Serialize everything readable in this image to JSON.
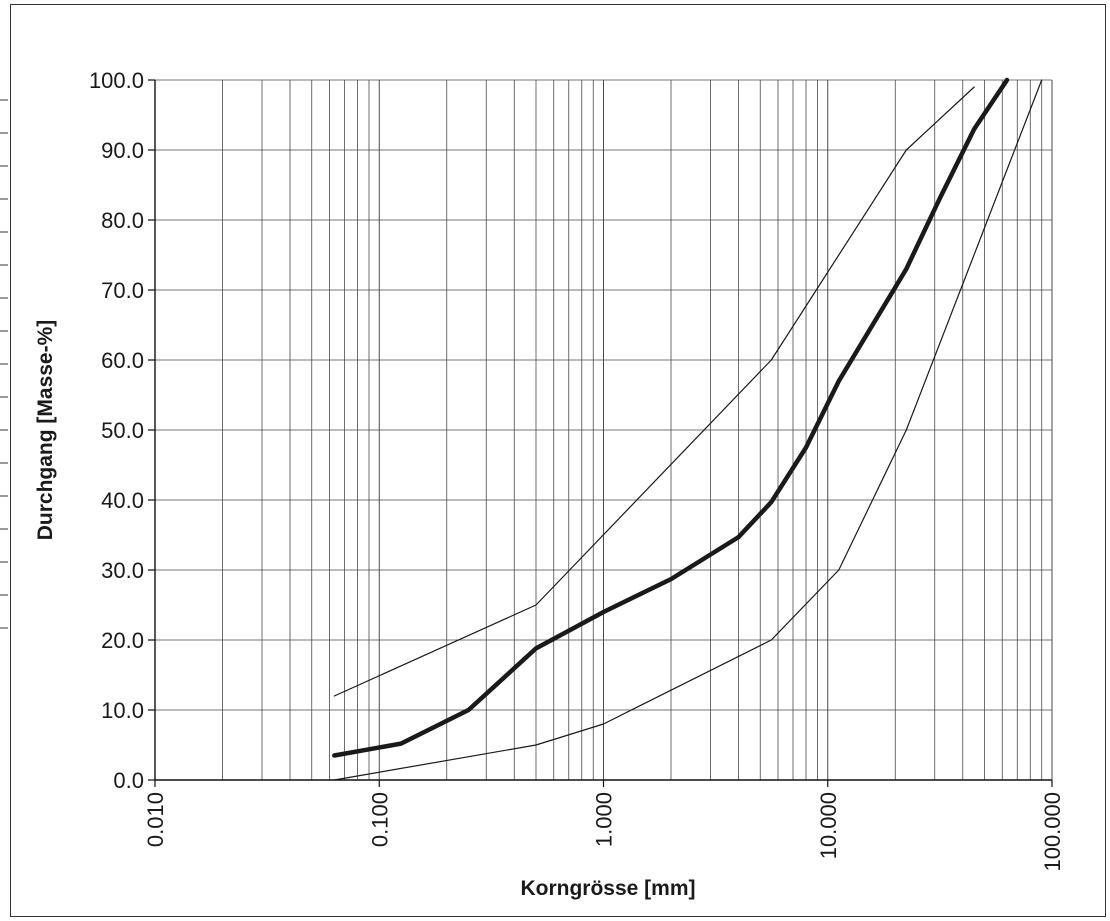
{
  "chart_data": {
    "type": "line",
    "xlabel": "Korngrösse [mm]",
    "ylabel": "Durchgang [Masse-%]",
    "x_scale": "log",
    "xlim": [
      0.01,
      100
    ],
    "ylim": [
      0,
      100
    ],
    "grid": true,
    "x_ticks": [
      "0.010",
      "0.100",
      "1.000",
      "10.000",
      "100.000"
    ],
    "y_ticks": [
      "0.0",
      "10.0",
      "20.0",
      "30.0",
      "40.0",
      "50.0",
      "60.0",
      "70.0",
      "80.0",
      "90.0",
      "100.0"
    ],
    "series": [
      {
        "role": "upper-limit",
        "color": "#1a1a1a",
        "x": [
          0.063,
          0.5,
          5.6,
          22.4,
          45
        ],
        "y": [
          12,
          25,
          60,
          90,
          99
        ]
      },
      {
        "role": "lower-limit",
        "color": "#1a1a1a",
        "x": [
          0.063,
          0.5,
          1,
          5.6,
          11.2,
          22.4,
          90
        ],
        "y": [
          0,
          5,
          8,
          20,
          30,
          50,
          100
        ]
      },
      {
        "role": "measured",
        "color": "#1a1a1a",
        "x": [
          0.063,
          0.125,
          0.25,
          0.5,
          1,
          2,
          4,
          5.6,
          8,
          11.2,
          22.4,
          31.5,
          45,
          63
        ],
        "y": [
          3.5,
          5.2,
          10,
          18.8,
          24,
          28.7,
          34.7,
          39.7,
          47.5,
          57,
          73,
          83,
          93,
          100
        ]
      }
    ]
  }
}
